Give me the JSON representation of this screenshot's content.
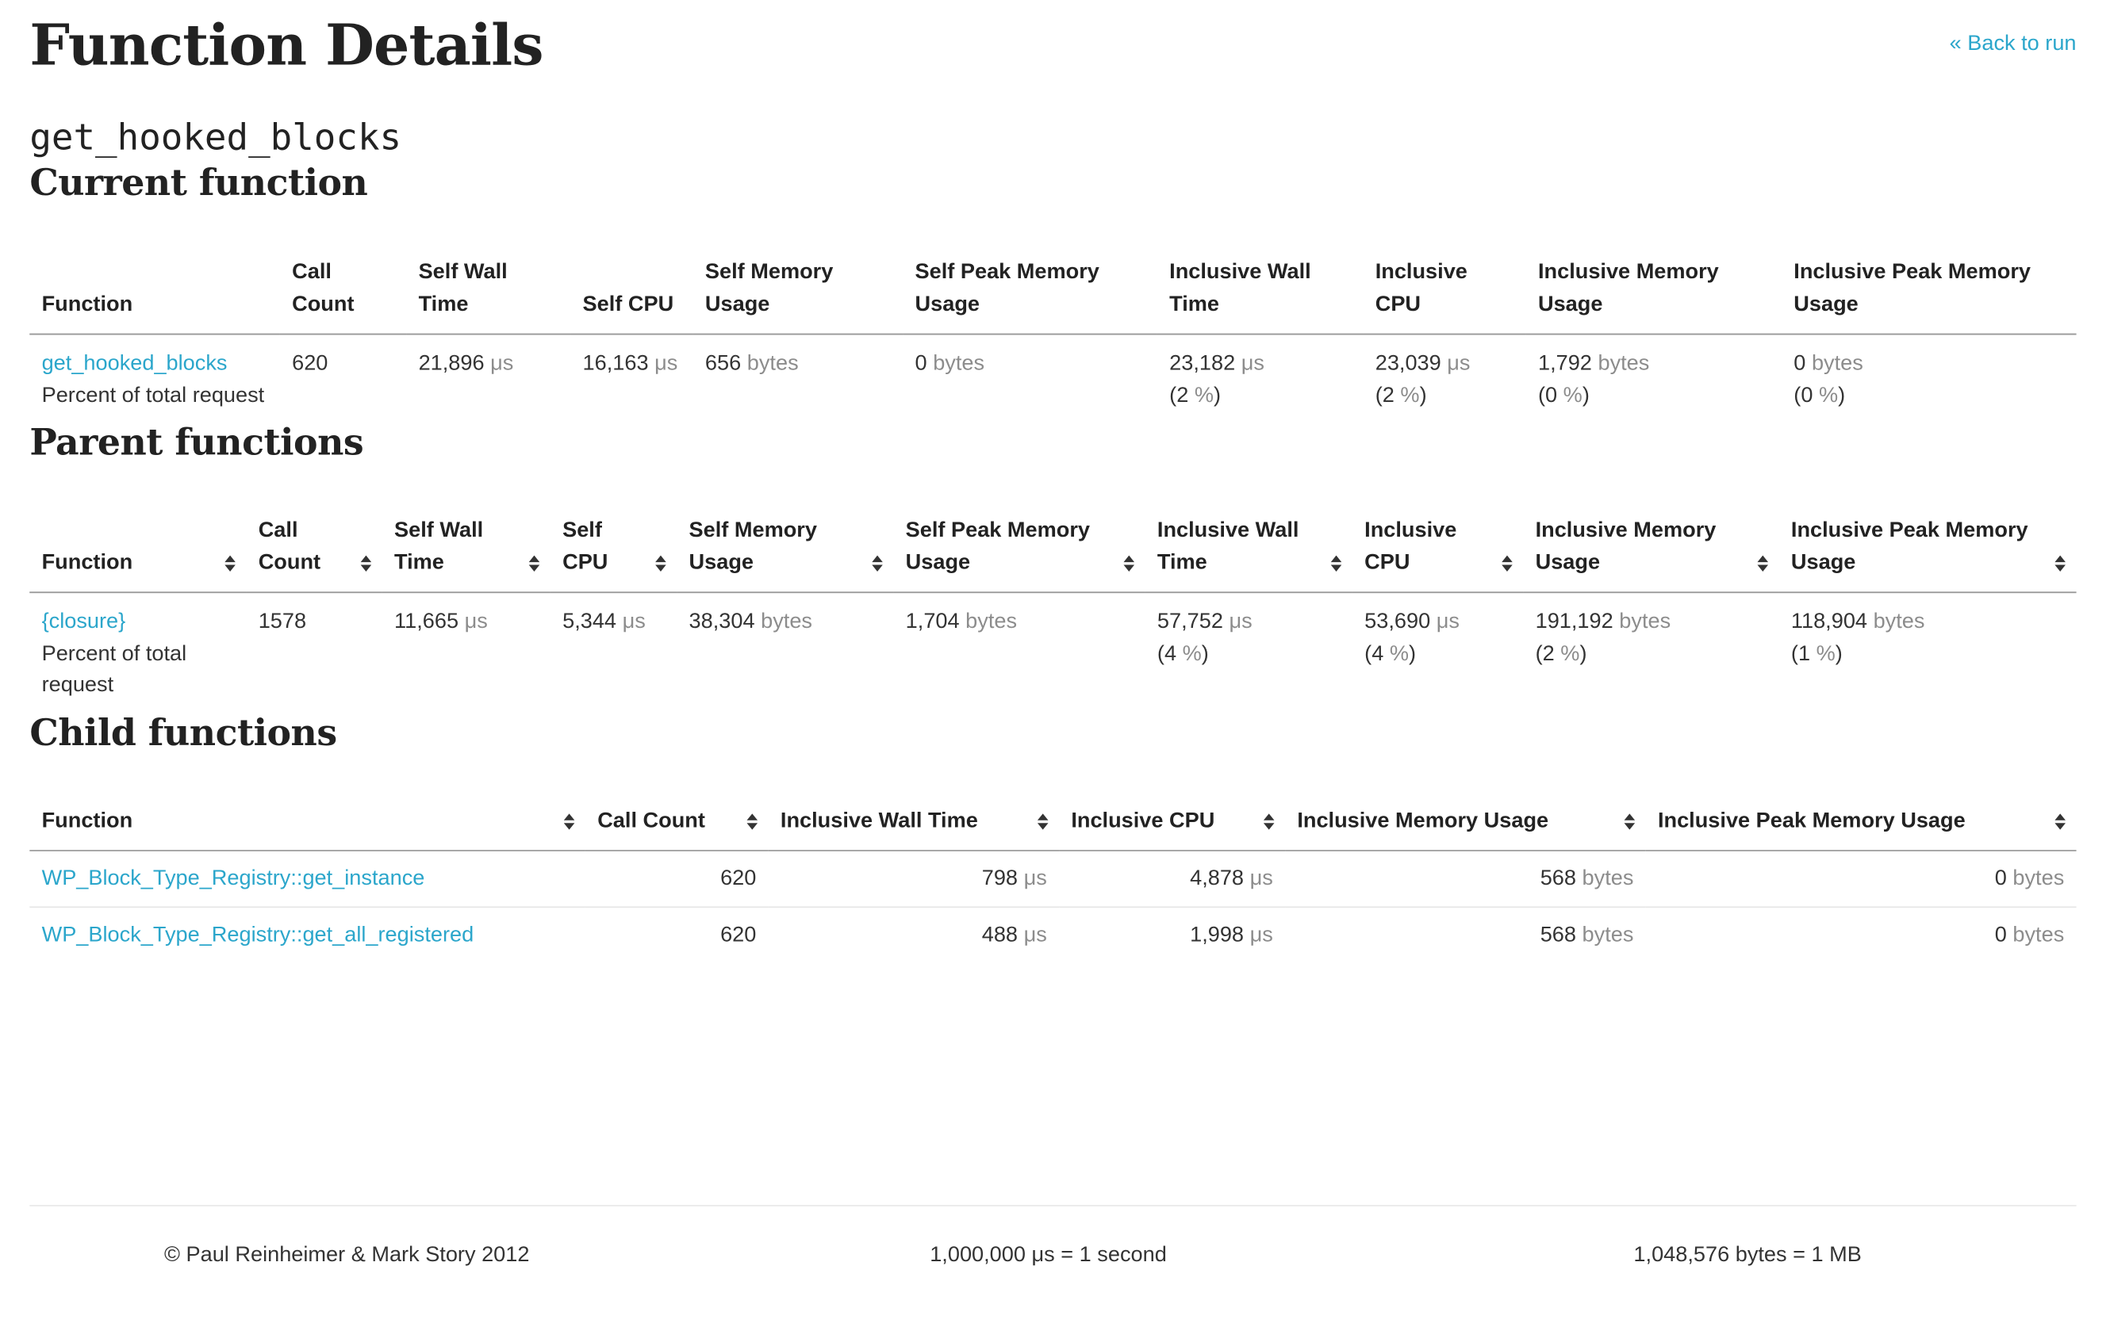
{
  "header": {
    "title": "Function Details",
    "back_link": "« Back to run",
    "function_name": "get_hooked_blocks"
  },
  "current": {
    "heading": "Current function",
    "columns": [
      "Function",
      "Call Count",
      "Self Wall Time",
      "Self CPU",
      "Self Memory Usage",
      "Self Peak Memory Usage",
      "Inclusive Wall Time",
      "Inclusive CPU",
      "Inclusive Memory Usage",
      "Inclusive Peak Memory Usage"
    ],
    "row": {
      "function": "get_hooked_blocks",
      "percent_label": "Percent of total request",
      "call_count": "620",
      "self_wall_time": "21,896",
      "self_cpu": "16,163",
      "self_memory": "656",
      "self_peak_memory": "0",
      "incl_wall_time": "23,182",
      "incl_wall_time_pct": "2",
      "incl_cpu": "23,039",
      "incl_cpu_pct": "2",
      "incl_memory": "1,792",
      "incl_memory_pct": "0",
      "incl_peak_memory": "0",
      "incl_peak_memory_pct": "0"
    }
  },
  "parents": {
    "heading": "Parent functions",
    "columns": [
      "Function",
      "Call Count",
      "Self Wall Time",
      "Self CPU",
      "Self Memory Usage",
      "Self Peak Memory Usage",
      "Inclusive Wall Time",
      "Inclusive CPU",
      "Inclusive Memory Usage",
      "Inclusive Peak Memory Usage"
    ],
    "row": {
      "function": "{closure}",
      "percent_label": "Percent of total request",
      "call_count": "1578",
      "self_wall_time": "11,665",
      "self_cpu": "5,344",
      "self_memory": "38,304",
      "self_peak_memory": "1,704",
      "incl_wall_time": "57,752",
      "incl_wall_time_pct": "4",
      "incl_cpu": "53,690",
      "incl_cpu_pct": "4",
      "incl_memory": "191,192",
      "incl_memory_pct": "2",
      "incl_peak_memory": "118,904",
      "incl_peak_memory_pct": "1"
    }
  },
  "children": {
    "heading": "Child functions",
    "columns": [
      "Function",
      "Call Count",
      "Inclusive Wall Time",
      "Inclusive CPU",
      "Inclusive Memory Usage",
      "Inclusive Peak Memory Usage"
    ],
    "rows": [
      {
        "function": "WP_Block_Type_Registry::get_instance",
        "call_count": "620",
        "incl_wall_time": "798",
        "incl_cpu": "4,878",
        "incl_memory": "568",
        "incl_peak_memory": "0"
      },
      {
        "function": "WP_Block_Type_Registry::get_all_registered",
        "call_count": "620",
        "incl_wall_time": "488",
        "incl_cpu": "1,998",
        "incl_memory": "568",
        "incl_peak_memory": "0"
      }
    ]
  },
  "units": {
    "time": "μs",
    "memory": "bytes",
    "percent": "%"
  },
  "footer": {
    "copyright": "© Paul Reinheimer & Mark Story 2012",
    "time_note": "1,000,000 μs = 1 second",
    "memory_note": "1,048,576 bytes = 1 MB"
  },
  "colors": {
    "link": "#2ba6cb",
    "unit": "#8c8c8c",
    "text": "#333333",
    "heading": "#222222"
  },
  "icons": {
    "sort": "sort-arrows-icon"
  }
}
